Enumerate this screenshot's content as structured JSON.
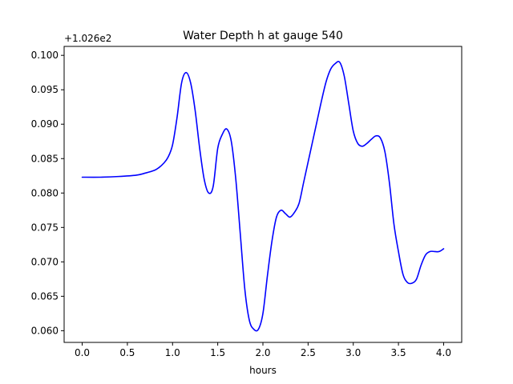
{
  "chart_data": {
    "type": "line",
    "title": "Water Depth h at gauge 540",
    "xlabel": "hours",
    "ylabel": "",
    "offset_label": "+1.026e2",
    "xlim": [
      -0.2,
      4.2
    ],
    "ylim": [
      0.0583,
      0.1013
    ],
    "xticks": [
      0.0,
      0.5,
      1.0,
      1.5,
      2.0,
      2.5,
      3.0,
      3.5,
      4.0
    ],
    "xtick_labels": [
      "0.0",
      "0.5",
      "1.0",
      "1.5",
      "2.0",
      "2.5",
      "3.0",
      "3.5",
      "4.0"
    ],
    "yticks": [
      0.06,
      0.065,
      0.07,
      0.075,
      0.08,
      0.085,
      0.09,
      0.095,
      0.1
    ],
    "ytick_labels": [
      "0.060",
      "0.065",
      "0.070",
      "0.075",
      "0.080",
      "0.085",
      "0.090",
      "0.095",
      "0.100"
    ],
    "grid": false,
    "series": [
      {
        "color": "#0000ff",
        "x": [
          0.0,
          0.2,
          0.4,
          0.6,
          0.7,
          0.8,
          0.85,
          0.9,
          0.95,
          1.0,
          1.05,
          1.1,
          1.15,
          1.2,
          1.25,
          1.3,
          1.35,
          1.4,
          1.45,
          1.5,
          1.55,
          1.6,
          1.65,
          1.7,
          1.75,
          1.8,
          1.85,
          1.9,
          1.95,
          2.0,
          2.05,
          2.1,
          2.15,
          2.2,
          2.25,
          2.3,
          2.35,
          2.4,
          2.45,
          2.5,
          2.55,
          2.6,
          2.65,
          2.7,
          2.75,
          2.8,
          2.85,
          2.9,
          2.95,
          3.0,
          3.05,
          3.1,
          3.15,
          3.2,
          3.25,
          3.3,
          3.35,
          3.4,
          3.45,
          3.5,
          3.55,
          3.6,
          3.65,
          3.7,
          3.75,
          3.8,
          3.85,
          3.9,
          3.95,
          4.0
        ],
        "y": [
          0.0823,
          0.0823,
          0.0824,
          0.0826,
          0.0829,
          0.0833,
          0.0837,
          0.0843,
          0.0852,
          0.087,
          0.091,
          0.096,
          0.0975,
          0.096,
          0.092,
          0.0865,
          0.082,
          0.08,
          0.081,
          0.0865,
          0.0885,
          0.0893,
          0.0875,
          0.082,
          0.074,
          0.066,
          0.0615,
          0.0602,
          0.0602,
          0.0625,
          0.068,
          0.073,
          0.0765,
          0.0775,
          0.077,
          0.0765,
          0.0772,
          0.0785,
          0.0815,
          0.0845,
          0.0875,
          0.0905,
          0.0935,
          0.0962,
          0.098,
          0.0988,
          0.099,
          0.097,
          0.093,
          0.089,
          0.0872,
          0.0868,
          0.0872,
          0.0878,
          0.0883,
          0.088,
          0.086,
          0.0815,
          0.0755,
          0.0715,
          0.0682,
          0.067,
          0.0669,
          0.0675,
          0.0695,
          0.071,
          0.0715,
          0.0715,
          0.0715,
          0.0719
        ]
      }
    ]
  }
}
